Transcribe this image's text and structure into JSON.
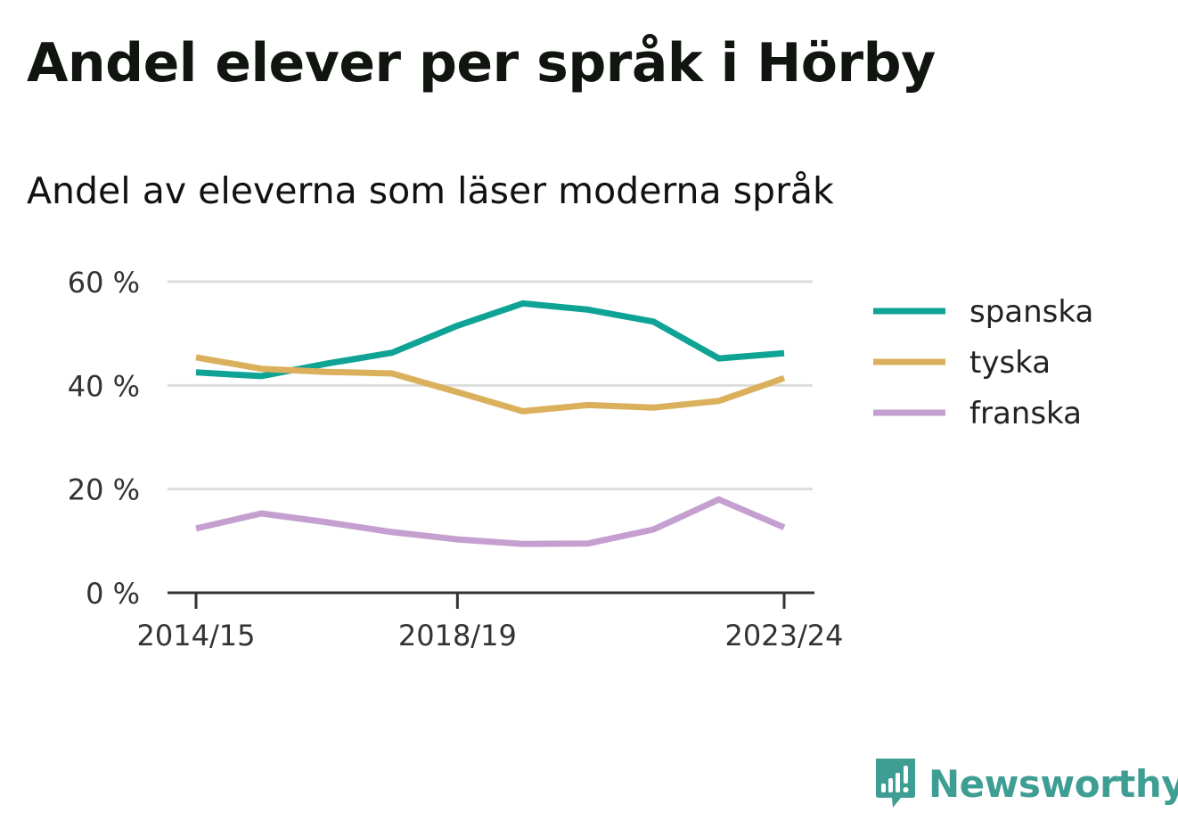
{
  "title": "Andel elever per språk i Hörby",
  "subtitle": "Andel av eleverna som läser moderna språk",
  "brand": {
    "name": "Newsworthy",
    "icon": "bar-chart-speech-bubble-icon",
    "color": "#3f9e94"
  },
  "chart_data": {
    "type": "line",
    "x": [
      "2014/15",
      "2015/16",
      "2016/17",
      "2017/18",
      "2018/19",
      "2019/20",
      "2020/21",
      "2021/22",
      "2022/23",
      "2023/24"
    ],
    "x_tick_labels": [
      "2014/15",
      "2018/19",
      "2023/24"
    ],
    "ylim": [
      0,
      60
    ],
    "y_ticks": [
      0,
      20,
      40,
      60
    ],
    "y_tick_labels": [
      "0 %",
      "20 %",
      "40 %",
      "60 %"
    ],
    "grid": true,
    "legend_position": "right",
    "series": [
      {
        "name": "spanska",
        "color": "#0fa396",
        "values": [
          42.5,
          41.8,
          44.2,
          46.3,
          51.5,
          55.8,
          54.6,
          52.3,
          45.2,
          46.2
        ]
      },
      {
        "name": "tyska",
        "color": "#dbb05d",
        "values": [
          45.4,
          43.2,
          42.6,
          42.3,
          38.7,
          35.0,
          36.2,
          35.7,
          37.0,
          41.4
        ]
      },
      {
        "name": "franska",
        "color": "#c49fd0",
        "values": [
          12.4,
          15.3,
          13.6,
          11.7,
          10.3,
          9.4,
          9.5,
          12.2,
          18.0,
          12.6
        ]
      }
    ]
  }
}
